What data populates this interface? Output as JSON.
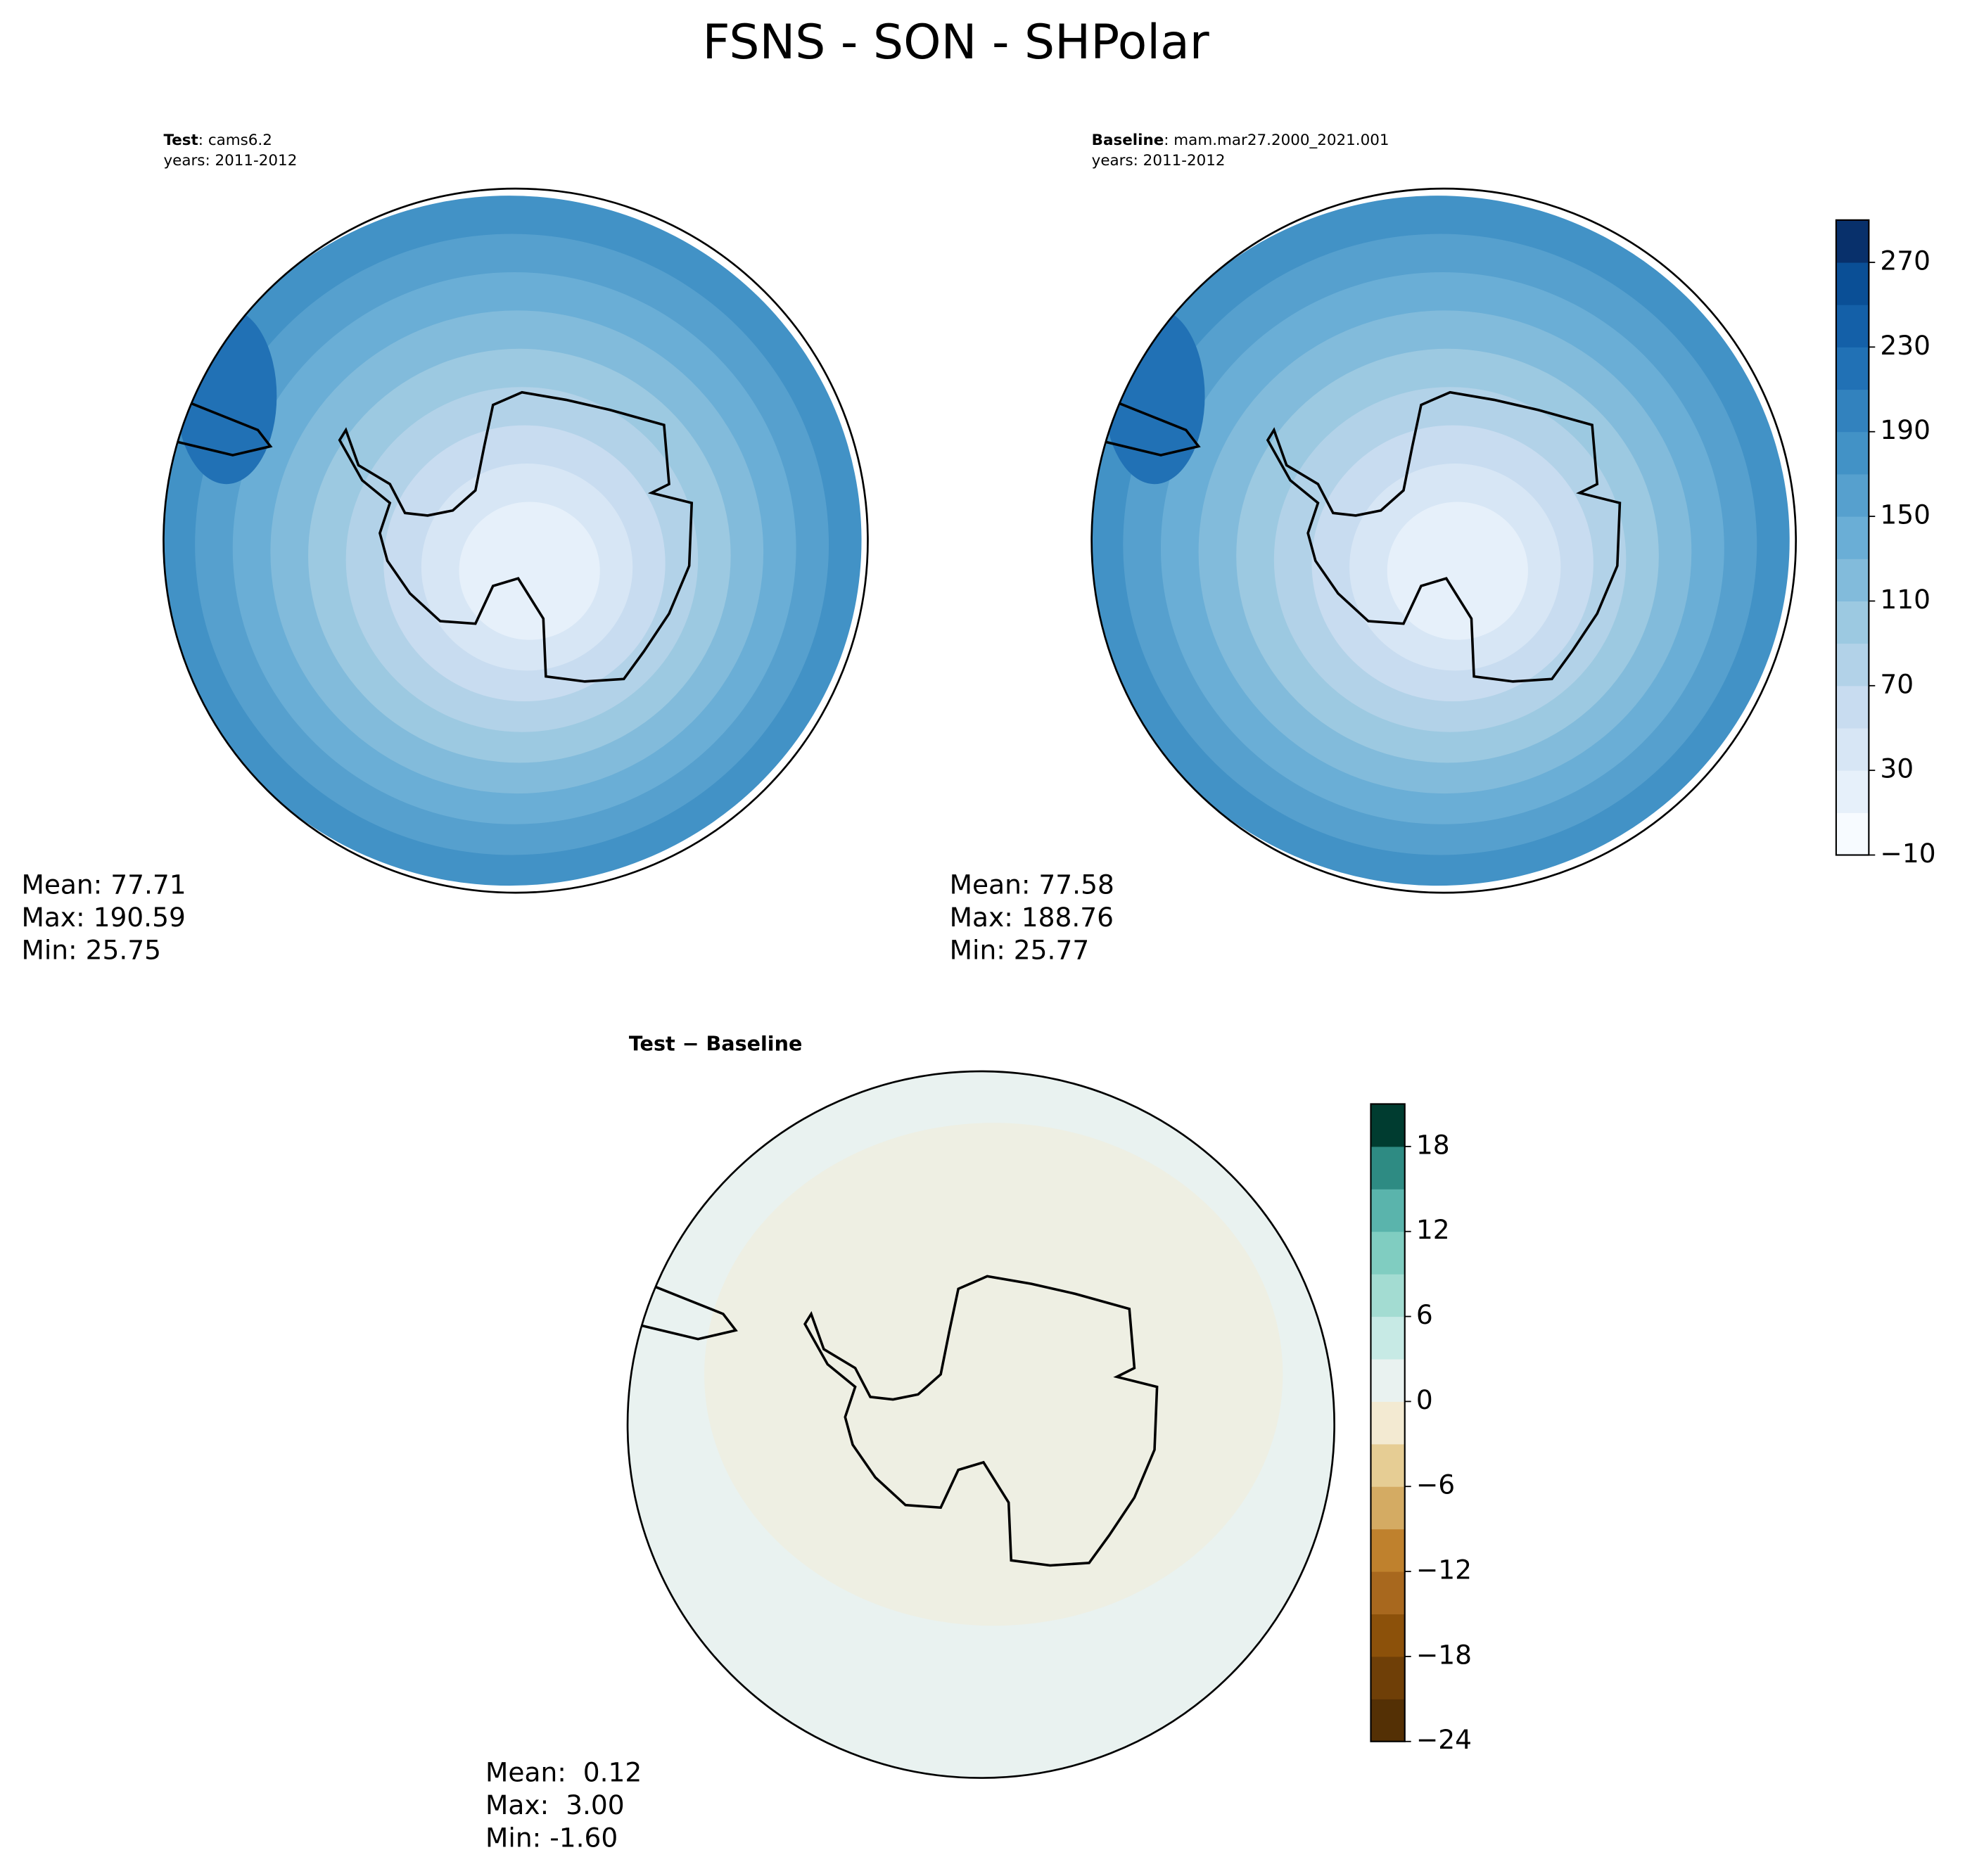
{
  "chart_data": {
    "type": "polar-map",
    "title": "FSNS - SON - SHPolar",
    "panels": [
      {
        "label": "Test",
        "name": ": cams6.2",
        "years": "years: 2011-2012",
        "stats": [
          "Mean: 77.71",
          "Max: 190.59",
          "Min: 25.75"
        ],
        "colorbar": 0
      },
      {
        "label": "Baseline",
        "name": ": mam.mar27.2000_2021.001",
        "years": "years: 2011-2012",
        "stats": [
          "Mean: 77.58",
          "Max: 188.76",
          "Min: 25.77"
        ],
        "colorbar": 0
      },
      {
        "label": "Test − Baseline",
        "stats": [
          "Mean:  0.12",
          "Max:  3.00",
          "Min: -1.60"
        ],
        "colorbar": 1
      }
    ],
    "colorbars": [
      {
        "lim": [
          -10,
          290
        ],
        "ticks": [
          {
            "value": -10,
            "label": "−10"
          },
          30,
          70,
          110,
          150,
          190,
          230,
          270
        ],
        "colors": [
          "#f7fbff",
          "#e6f0fa",
          "#d7e6f5",
          "#c8dcf0",
          "#b2d2e8",
          "#9cc9e1",
          "#82bbdb",
          "#6aaed6",
          "#56a0ce",
          "#4292c6",
          "#3282be",
          "#2171b5",
          "#1460a8",
          "#0a4f96",
          "#08306b"
        ]
      },
      {
        "lim": [
          -24,
          21
        ],
        "ticks": [
          {
            "value": -24,
            "label": "−24"
          },
          {
            "value": -18,
            "label": "−18"
          },
          {
            "value": -12,
            "label": "−12"
          },
          {
            "value": -6,
            "label": "−6"
          },
          0,
          6,
          12,
          18
        ],
        "colors": [
          "#543005",
          "#6f3f07",
          "#8c510a",
          "#a8681e",
          "#bf812d",
          "#d4ab63",
          "#e6cd94",
          "#f3ead2",
          "#e9f2f0",
          "#c7eae5",
          "#a3dcd2",
          "#80cdc1",
          "#5ab4ac",
          "#2e8b83",
          "#003c30"
        ]
      }
    ]
  }
}
